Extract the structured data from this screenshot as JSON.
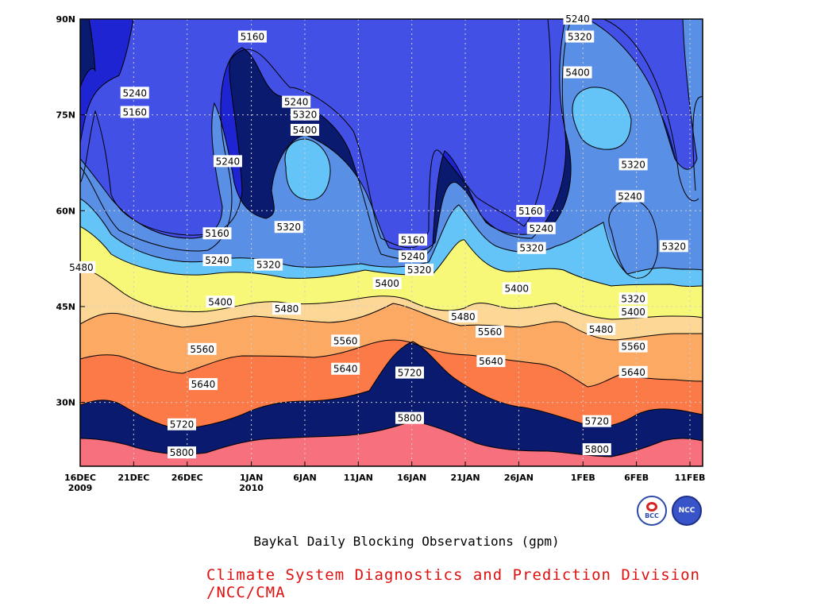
{
  "chart_data": {
    "type": "heatmap",
    "title": "Baykal Daily Blocking Observations (gpm)",
    "credit": "Climate System Diagnostics and Prediction Division /NCC/CMA",
    "x_range_days": [
      0,
      57
    ],
    "x_ticks": [
      {
        "day": 0,
        "label": "16DEC",
        "sub": "2009"
      },
      {
        "day": 5,
        "label": "21DEC",
        "sub": ""
      },
      {
        "day": 10,
        "label": "26DEC",
        "sub": ""
      },
      {
        "day": 16,
        "label": "1JAN",
        "sub": "2010"
      },
      {
        "day": 21,
        "label": "6JAN",
        "sub": ""
      },
      {
        "day": 26,
        "label": "11JAN",
        "sub": ""
      },
      {
        "day": 31,
        "label": "16JAN",
        "sub": ""
      },
      {
        "day": 36,
        "label": "21JAN",
        "sub": ""
      },
      {
        "day": 41,
        "label": "26JAN",
        "sub": ""
      },
      {
        "day": 47,
        "label": "1FEB",
        "sub": ""
      },
      {
        "day": 52,
        "label": "6FEB",
        "sub": ""
      },
      {
        "day": 57,
        "label": "11FEB",
        "sub": ""
      }
    ],
    "y_range_lat": [
      20,
      90
    ],
    "y_ticks": [
      {
        "lat": 30,
        "label": "30N"
      },
      {
        "lat": 45,
        "label": "45N"
      },
      {
        "lat": 60,
        "label": "60N"
      },
      {
        "lat": 75,
        "label": "75N"
      },
      {
        "lat": 90,
        "label": "90N"
      }
    ],
    "grid": true,
    "levels": [
      5160,
      5240,
      5320,
      5400,
      5480,
      5560,
      5640,
      5720,
      5800
    ],
    "colors": [
      "#0a1a6e",
      "#1f24d2",
      "#4350e6",
      "#5a8fe6",
      "#64c4f8",
      "#f8f878",
      "#fcd796",
      "#fca964",
      "#fc7a48",
      "#f6707e"
    ],
    "contour_labels": [
      {
        "value": "5240",
        "day": 46.5,
        "lat": 90
      },
      {
        "value": "5320",
        "day": 46.7,
        "lat": 87.2
      },
      {
        "value": "5400",
        "day": 46.5,
        "lat": 81.6
      },
      {
        "value": "5240",
        "day": 5.1,
        "lat": 78.4
      },
      {
        "value": "5160",
        "day": 5.1,
        "lat": 75.4
      },
      {
        "value": "5160",
        "day": 16.1,
        "lat": 87.2
      },
      {
        "value": "5240",
        "day": 20.2,
        "lat": 77
      },
      {
        "value": "5320",
        "day": 21,
        "lat": 75
      },
      {
        "value": "5400",
        "day": 21,
        "lat": 72.6
      },
      {
        "value": "5240",
        "day": 13.8,
        "lat": 67.7
      },
      {
        "value": "5320",
        "day": 19.5,
        "lat": 57.4
      },
      {
        "value": "5160",
        "day": 12.8,
        "lat": 56.4
      },
      {
        "value": "5240",
        "day": 12.8,
        "lat": 52.2
      },
      {
        "value": "5320",
        "day": 17.6,
        "lat": 51.5
      },
      {
        "value": "5480",
        "day": 0.1,
        "lat": 51.1
      },
      {
        "value": "5160",
        "day": 31.1,
        "lat": 55.4
      },
      {
        "value": "5240",
        "day": 31.1,
        "lat": 52.8
      },
      {
        "value": "5320",
        "day": 31.7,
        "lat": 50.7
      },
      {
        "value": "5400",
        "day": 28.7,
        "lat": 48.6
      },
      {
        "value": "5160",
        "day": 42.1,
        "lat": 59.9
      },
      {
        "value": "5240",
        "day": 43.1,
        "lat": 57.2
      },
      {
        "value": "5320",
        "day": 42.2,
        "lat": 54.1
      },
      {
        "value": "5400",
        "day": 40.8,
        "lat": 47.8
      },
      {
        "value": "5320",
        "day": 51.7,
        "lat": 67.2
      },
      {
        "value": "5240",
        "day": 51.4,
        "lat": 62.2
      },
      {
        "value": "5320",
        "day": 55.5,
        "lat": 54.4
      },
      {
        "value": "5320",
        "day": 51.7,
        "lat": 46.2
      },
      {
        "value": "5400",
        "day": 51.7,
        "lat": 44.1
      },
      {
        "value": "5400",
        "day": 13.1,
        "lat": 45.7
      },
      {
        "value": "5480",
        "day": 19.3,
        "lat": 44.6
      },
      {
        "value": "5480",
        "day": 35.8,
        "lat": 43.4
      },
      {
        "value": "5480",
        "day": 48.7,
        "lat": 41.4
      },
      {
        "value": "5560",
        "day": 38.3,
        "lat": 41
      },
      {
        "value": "5560",
        "day": 11.4,
        "lat": 38.3
      },
      {
        "value": "5560",
        "day": 24.8,
        "lat": 39.6
      },
      {
        "value": "5560",
        "day": 51.7,
        "lat": 38.7
      },
      {
        "value": "5640",
        "day": 11.5,
        "lat": 32.8
      },
      {
        "value": "5640",
        "day": 24.8,
        "lat": 35.2
      },
      {
        "value": "5640",
        "day": 38.4,
        "lat": 36.4
      },
      {
        "value": "5640",
        "day": 51.7,
        "lat": 34.7
      },
      {
        "value": "5720",
        "day": 30.8,
        "lat": 34.6
      },
      {
        "value": "5720",
        "day": 9.5,
        "lat": 26.5
      },
      {
        "value": "5720",
        "day": 48.3,
        "lat": 27
      },
      {
        "value": "5800",
        "day": 30.8,
        "lat": 27.5
      },
      {
        "value": "5800",
        "day": 9.5,
        "lat": 22.1
      },
      {
        "value": "5800",
        "day": 48.3,
        "lat": 22.6
      }
    ]
  },
  "logos": {
    "bcc": "BCC",
    "ncc": "NCC"
  }
}
